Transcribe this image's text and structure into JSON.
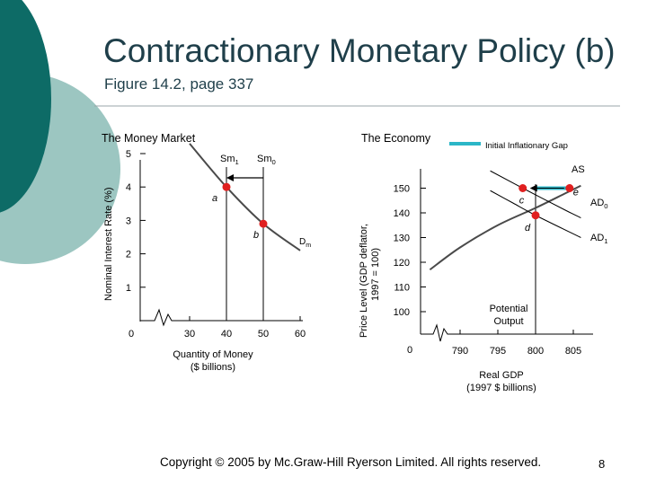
{
  "slide": {
    "title": "Contractionary Monetary Policy (b)",
    "subtitle": "Figure 14.2, page 337",
    "copyright": "Copyright © 2005 by Mc.Graw-Hill Ryerson Limited. All rights reserved.",
    "page_number": "8"
  },
  "colors": {
    "accent_dark": "#0d6b66",
    "accent_light": "#9cc6c1",
    "curve": "#4a4a4a",
    "point": "#e02020",
    "gap_bar": "#2bb6c7"
  },
  "money_market": {
    "heading": "The Money Market",
    "y_axis_label": "Nominal Interest Rate (%)",
    "x_axis_label_line1": "Quantity of Money",
    "x_axis_label_line2": "($ billions)",
    "y_ticks": [
      "5",
      "4",
      "3",
      "2",
      "1"
    ],
    "origin": "0",
    "x_ticks": [
      "30",
      "40",
      "50",
      "60"
    ],
    "supply_labels": {
      "sm1": "Sm1",
      "sm0": "Sm0"
    },
    "demand_label": "Dm",
    "points": {
      "a": "a",
      "b": "b"
    }
  },
  "economy": {
    "heading": "The Economy",
    "legend": "Initial Inflationary Gap",
    "y_axis_label_line1": "Price Level (GDP deflator,",
    "y_axis_label_line2": "1997 = 100)",
    "x_axis_label_line1": "Real GDP",
    "x_axis_label_line2": "(1997 $ billions)",
    "y_ticks": [
      "150",
      "140",
      "130",
      "120",
      "110",
      "100"
    ],
    "origin": "0",
    "x_ticks": [
      "790",
      "795",
      "800",
      "805"
    ],
    "labels": {
      "as": "AS",
      "ad0": "AD0",
      "ad1": "AD1",
      "potential_line1": "Potential",
      "potential_line2": "Output"
    },
    "points": {
      "c": "c",
      "d": "d",
      "e": "e"
    }
  },
  "chart_data": [
    {
      "type": "line",
      "title": "The Money Market",
      "xlabel": "Quantity of Money ($ billions)",
      "ylabel": "Nominal Interest Rate (%)",
      "xlim": [
        25,
        65
      ],
      "ylim": [
        0,
        5
      ],
      "x_ticks": [
        30,
        40,
        50,
        60
      ],
      "y_ticks": [
        1,
        2,
        3,
        4,
        5
      ],
      "series": [
        {
          "name": "Sm1",
          "kind": "vertical",
          "x": 40
        },
        {
          "name": "Sm0",
          "kind": "vertical",
          "x": 50
        },
        {
          "name": "Dm",
          "points": [
            [
              30,
              5.3
            ],
            [
              40,
              4.0
            ],
            [
              50,
              2.9
            ],
            [
              60,
              2.1
            ]
          ]
        }
      ],
      "points": [
        {
          "label": "a",
          "x": 40,
          "y": 4.0
        },
        {
          "label": "b",
          "x": 50,
          "y": 2.9
        }
      ]
    },
    {
      "type": "line",
      "title": "The Economy",
      "xlabel": "Real GDP (1997 $ billions)",
      "ylabel": "Price Level (GDP deflator, 1997 = 100)",
      "xlim": [
        785,
        807
      ],
      "ylim": [
        95,
        155
      ],
      "x_ticks": [
        790,
        795,
        800,
        805
      ],
      "y_ticks": [
        100,
        110,
        120,
        130,
        140,
        150
      ],
      "series": [
        {
          "name": "AS",
          "points": [
            [
              786,
              117
            ],
            [
              790,
              126
            ],
            [
              795,
              135
            ],
            [
              800,
              142
            ],
            [
              804,
              148
            ],
            [
              806,
              151
            ]
          ]
        },
        {
          "name": "AD0",
          "points": [
            [
              794,
              157
            ],
            [
              798.3,
              150
            ],
            [
              804,
              141
            ],
            [
              806,
              138
            ]
          ]
        },
        {
          "name": "AD1",
          "points": [
            [
              794,
              149
            ],
            [
              797,
              144
            ],
            [
              800,
              139
            ],
            [
              806,
              130
            ]
          ]
        },
        {
          "name": "Potential Output",
          "kind": "vertical",
          "x": 800
        }
      ],
      "points": [
        {
          "label": "c",
          "x": 798.3,
          "y": 150
        },
        {
          "label": "d",
          "x": 800,
          "y": 139
        },
        {
          "label": "e",
          "x": 804.5,
          "y": 150
        }
      ],
      "annotations": [
        "Initial Inflationary Gap"
      ]
    }
  ]
}
